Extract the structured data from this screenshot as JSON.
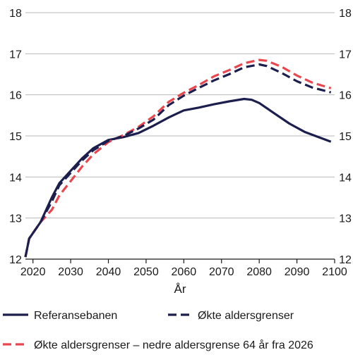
{
  "chart_data": {
    "type": "line",
    "xlabel": "År",
    "ylabel": "",
    "xlim": [
      2018,
      2100
    ],
    "ylim": [
      12,
      18
    ],
    "x_ticks": [
      "2020",
      "2030",
      "2040",
      "2050",
      "2060",
      "2070",
      "2080",
      "2090",
      "2100"
    ],
    "y_ticks": [
      "12",
      "13",
      "14",
      "15",
      "16",
      "17",
      "18"
    ],
    "grid": "horizontal",
    "legend_position": "bottom",
    "series": [
      {
        "name": "Referansebanen",
        "color": "#1c1f4d",
        "style": "solid",
        "points": [
          [
            2018,
            12.05
          ],
          [
            2019,
            12.5
          ],
          [
            2022,
            12.9
          ],
          [
            2025,
            13.5
          ],
          [
            2027,
            13.85
          ],
          [
            2030,
            14.15
          ],
          [
            2033,
            14.45
          ],
          [
            2036,
            14.7
          ],
          [
            2040,
            14.9
          ],
          [
            2044,
            14.97
          ],
          [
            2048,
            15.07
          ],
          [
            2052,
            15.25
          ],
          [
            2056,
            15.45
          ],
          [
            2060,
            15.62
          ],
          [
            2064,
            15.69
          ],
          [
            2068,
            15.77
          ],
          [
            2072,
            15.84
          ],
          [
            2076,
            15.9
          ],
          [
            2078,
            15.88
          ],
          [
            2080,
            15.8
          ],
          [
            2084,
            15.55
          ],
          [
            2088,
            15.3
          ],
          [
            2092,
            15.1
          ],
          [
            2096,
            14.96
          ],
          [
            2099,
            14.86
          ]
        ]
      },
      {
        "name": "Økte aldersgrenser",
        "color": "#1c1f4d",
        "style": "dashed",
        "points": [
          [
            2018,
            12.05
          ],
          [
            2019,
            12.5
          ],
          [
            2022,
            12.9
          ],
          [
            2025,
            13.4
          ],
          [
            2027,
            13.8
          ],
          [
            2030,
            14.1
          ],
          [
            2033,
            14.4
          ],
          [
            2036,
            14.65
          ],
          [
            2040,
            14.88
          ],
          [
            2044,
            15.0
          ],
          [
            2048,
            15.18
          ],
          [
            2052,
            15.4
          ],
          [
            2056,
            15.75
          ],
          [
            2060,
            15.98
          ],
          [
            2064,
            16.17
          ],
          [
            2068,
            16.35
          ],
          [
            2072,
            16.5
          ],
          [
            2076,
            16.67
          ],
          [
            2080,
            16.74
          ],
          [
            2082,
            16.7
          ],
          [
            2086,
            16.53
          ],
          [
            2090,
            16.33
          ],
          [
            2094,
            16.18
          ],
          [
            2099,
            16.06
          ]
        ]
      },
      {
        "name": "Økte aldersgrenser – nedre aldersgrense 64 år fra 2026",
        "color": "#e8474f",
        "style": "dashed",
        "points": [
          [
            2018,
            12.05
          ],
          [
            2019,
            12.5
          ],
          [
            2022,
            12.9
          ],
          [
            2025,
            13.2
          ],
          [
            2027,
            13.55
          ],
          [
            2030,
            13.9
          ],
          [
            2033,
            14.25
          ],
          [
            2036,
            14.55
          ],
          [
            2040,
            14.85
          ],
          [
            2044,
            15.02
          ],
          [
            2048,
            15.22
          ],
          [
            2052,
            15.48
          ],
          [
            2056,
            15.83
          ],
          [
            2060,
            16.05
          ],
          [
            2064,
            16.24
          ],
          [
            2068,
            16.45
          ],
          [
            2072,
            16.6
          ],
          [
            2076,
            16.77
          ],
          [
            2080,
            16.85
          ],
          [
            2082,
            16.83
          ],
          [
            2086,
            16.68
          ],
          [
            2090,
            16.47
          ],
          [
            2094,
            16.3
          ],
          [
            2099,
            16.16
          ]
        ]
      }
    ]
  }
}
